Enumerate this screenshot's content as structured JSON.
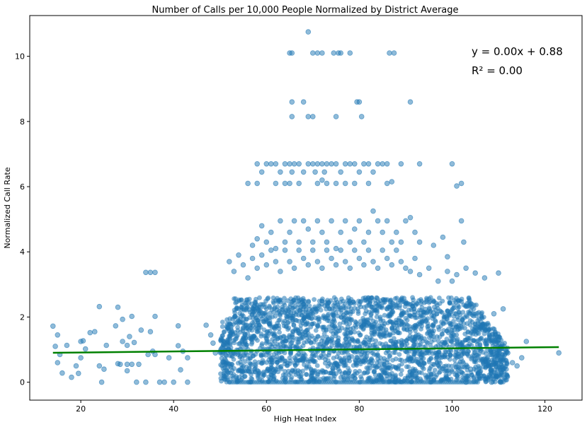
{
  "chart_data": {
    "type": "scatter",
    "title": "Number of Calls per 10,000 People Normalized by District Average",
    "xlabel": "High Heat Index",
    "ylabel": "Normalized Call Rate",
    "xlim": [
      9,
      128
    ],
    "ylim": [
      -0.55,
      11.25
    ],
    "xticks": [
      20,
      40,
      60,
      80,
      100,
      120
    ],
    "yticks": [
      0,
      2,
      4,
      6,
      8,
      10
    ],
    "grid": false,
    "point_color": "#1f77b4",
    "point_opacity": 0.5,
    "trendline": {
      "color": "#008000",
      "slope": 0.0016,
      "intercept": 0.88,
      "x": [
        14,
        123
      ]
    },
    "annotations": [
      "y = 0.00x + 0.88",
      "R² = 0.00"
    ],
    "dense_cluster": {
      "x_range": [
        50,
        112
      ],
      "y_range": [
        0,
        2.6
      ]
    },
    "sample_points": [
      [
        14,
        1.72
      ],
      [
        14.5,
        1.1
      ],
      [
        15,
        1.45
      ],
      [
        15,
        0.6
      ],
      [
        15.5,
        0.85
      ],
      [
        16,
        0.28
      ],
      [
        17,
        1.13
      ],
      [
        18,
        0.15
      ],
      [
        19,
        0.5
      ],
      [
        19.5,
        0.27
      ],
      [
        20,
        0.75
      ],
      [
        20,
        1.25
      ],
      [
        20.5,
        1.27
      ],
      [
        21,
        1.02
      ],
      [
        22,
        1.52
      ],
      [
        23,
        1.55
      ],
      [
        24,
        2.32
      ],
      [
        24,
        0.5
      ],
      [
        24.5,
        0.0
      ],
      [
        25,
        0.4
      ],
      [
        25.5,
        1.13
      ],
      [
        27.5,
        1.73
      ],
      [
        28,
        0.57
      ],
      [
        28,
        2.3
      ],
      [
        28.5,
        0.55
      ],
      [
        29,
        1.25
      ],
      [
        29,
        1.93
      ],
      [
        30,
        1.13
      ],
      [
        30,
        0.55
      ],
      [
        30,
        0.35
      ],
      [
        30.5,
        1.4
      ],
      [
        31,
        2.02
      ],
      [
        31,
        0.55
      ],
      [
        31.5,
        1.22
      ],
      [
        32,
        0.0
      ],
      [
        32.5,
        0.55
      ],
      [
        33,
        1.6
      ],
      [
        34,
        3.37
      ],
      [
        34,
        0.0
      ],
      [
        34.5,
        0.85
      ],
      [
        35,
        3.37
      ],
      [
        35,
        1.55
      ],
      [
        35.5,
        0.95
      ],
      [
        36,
        3.37
      ],
      [
        36,
        2.02
      ],
      [
        36,
        0.85
      ],
      [
        37,
        0.0
      ],
      [
        38,
        0.0
      ],
      [
        39,
        0.75
      ],
      [
        40,
        0.0
      ],
      [
        41,
        1.12
      ],
      [
        41,
        1.73
      ],
      [
        41.5,
        0.38
      ],
      [
        42,
        0.95
      ],
      [
        43,
        0.0
      ],
      [
        43,
        0.75
      ],
      [
        65,
        10.1
      ],
      [
        65.5,
        10.1
      ],
      [
        69,
        10.75
      ],
      [
        70,
        10.1
      ],
      [
        71,
        10.1
      ],
      [
        72,
        10.1
      ],
      [
        74.5,
        10.1
      ],
      [
        75.5,
        10.1
      ],
      [
        76,
        10.1
      ],
      [
        78,
        10.1
      ],
      [
        86.5,
        10.1
      ],
      [
        87.5,
        10.1
      ],
      [
        65.5,
        8.6
      ],
      [
        65.5,
        8.15
      ],
      [
        68,
        8.6
      ],
      [
        69,
        8.15
      ],
      [
        70,
        8.15
      ],
      [
        75,
        8.15
      ],
      [
        79.5,
        8.6
      ],
      [
        80,
        8.6
      ],
      [
        80.5,
        8.15
      ],
      [
        91,
        8.6
      ],
      [
        58,
        6.7
      ],
      [
        59,
        6.45
      ],
      [
        60,
        6.7
      ],
      [
        61,
        6.7
      ],
      [
        62,
        6.7
      ],
      [
        63,
        6.45
      ],
      [
        64,
        6.7
      ],
      [
        65,
        6.7
      ],
      [
        65.5,
        6.45
      ],
      [
        66,
        6.7
      ],
      [
        67,
        6.7
      ],
      [
        68,
        6.45
      ],
      [
        69,
        6.7
      ],
      [
        70,
        6.7
      ],
      [
        70.5,
        6.45
      ],
      [
        71,
        6.7
      ],
      [
        72,
        6.7
      ],
      [
        72.5,
        6.45
      ],
      [
        73,
        6.7
      ],
      [
        74,
        6.7
      ],
      [
        75,
        6.7
      ],
      [
        76,
        6.45
      ],
      [
        77,
        6.7
      ],
      [
        78,
        6.7
      ],
      [
        79,
        6.7
      ],
      [
        80,
        6.45
      ],
      [
        81,
        6.7
      ],
      [
        82,
        6.7
      ],
      [
        83,
        6.45
      ],
      [
        84,
        6.7
      ],
      [
        85,
        6.7
      ],
      [
        86,
        6.7
      ],
      [
        89,
        6.7
      ],
      [
        93,
        6.7
      ],
      [
        100,
        6.7
      ],
      [
        56,
        6.1
      ],
      [
        58,
        6.1
      ],
      [
        62,
        6.1
      ],
      [
        64,
        6.1
      ],
      [
        65,
        6.1
      ],
      [
        67,
        6.1
      ],
      [
        71,
        6.1
      ],
      [
        72,
        6.2
      ],
      [
        73,
        6.1
      ],
      [
        75,
        6.1
      ],
      [
        77,
        6.1
      ],
      [
        79,
        6.1
      ],
      [
        82,
        6.1
      ],
      [
        86,
        6.1
      ],
      [
        87,
        6.15
      ],
      [
        101,
        6.02
      ],
      [
        102,
        6.1
      ],
      [
        57,
        4.2
      ],
      [
        58,
        4.4
      ],
      [
        59,
        4.8
      ],
      [
        60,
        4.3
      ],
      [
        61,
        4.6
      ],
      [
        62,
        4.1
      ],
      [
        63,
        4.95
      ],
      [
        64,
        4.3
      ],
      [
        65,
        4.6
      ],
      [
        66,
        4.95
      ],
      [
        67,
        4.3
      ],
      [
        68,
        4.95
      ],
      [
        69,
        4.7
      ],
      [
        70,
        4.3
      ],
      [
        71,
        4.95
      ],
      [
        72,
        4.6
      ],
      [
        73,
        4.3
      ],
      [
        74,
        4.95
      ],
      [
        75,
        4.1
      ],
      [
        76,
        4.6
      ],
      [
        77,
        4.95
      ],
      [
        78,
        4.3
      ],
      [
        79,
        4.7
      ],
      [
        80,
        4.95
      ],
      [
        81,
        4.3
      ],
      [
        82,
        4.6
      ],
      [
        83,
        5.25
      ],
      [
        84,
        4.95
      ],
      [
        85,
        4.6
      ],
      [
        86,
        4.95
      ],
      [
        87,
        4.3
      ],
      [
        88,
        4.6
      ],
      [
        89,
        4.3
      ],
      [
        90,
        4.95
      ],
      [
        91,
        5.05
      ],
      [
        92,
        4.6
      ],
      [
        93,
        4.3
      ],
      [
        96,
        4.2
      ],
      [
        98,
        4.45
      ],
      [
        99,
        3.85
      ],
      [
        102,
        4.95
      ],
      [
        102.5,
        4.3
      ],
      [
        52,
        3.7
      ],
      [
        53,
        3.4
      ],
      [
        54,
        3.9
      ],
      [
        55,
        3.6
      ],
      [
        56,
        3.2
      ],
      [
        57,
        3.8
      ],
      [
        58,
        3.5
      ],
      [
        59,
        3.9
      ],
      [
        60,
        3.6
      ],
      [
        61,
        4.05
      ],
      [
        62,
        3.7
      ],
      [
        63,
        3.4
      ],
      [
        64,
        4.05
      ],
      [
        65,
        3.7
      ],
      [
        66,
        3.5
      ],
      [
        67,
        4.05
      ],
      [
        68,
        3.8
      ],
      [
        69,
        3.6
      ],
      [
        70,
        4.05
      ],
      [
        71,
        3.7
      ],
      [
        72,
        3.5
      ],
      [
        73,
        4.05
      ],
      [
        74,
        3.8
      ],
      [
        75,
        3.6
      ],
      [
        76,
        4.05
      ],
      [
        77,
        3.7
      ],
      [
        78,
        3.5
      ],
      [
        79,
        4.05
      ],
      [
        80,
        3.8
      ],
      [
        81,
        3.6
      ],
      [
        82,
        4.05
      ],
      [
        83,
        3.7
      ],
      [
        84,
        3.5
      ],
      [
        85,
        4.05
      ],
      [
        86,
        3.8
      ],
      [
        87,
        3.6
      ],
      [
        88,
        4.05
      ],
      [
        89,
        3.7
      ],
      [
        90,
        3.5
      ],
      [
        91,
        3.4
      ],
      [
        92,
        3.8
      ],
      [
        93,
        3.3
      ],
      [
        95,
        3.5
      ],
      [
        97,
        3.1
      ],
      [
        99,
        3.4
      ],
      [
        100,
        3.1
      ],
      [
        101,
        3.3
      ],
      [
        103,
        3.5
      ],
      [
        105,
        3.35
      ],
      [
        107,
        3.2
      ],
      [
        110,
        3.35
      ],
      [
        103,
        0.0
      ],
      [
        104,
        0.4
      ],
      [
        105,
        0.7
      ],
      [
        106,
        0.3
      ],
      [
        107,
        1.7
      ],
      [
        108,
        0.6
      ],
      [
        108.5,
        0.0
      ],
      [
        109,
        2.1
      ],
      [
        110,
        1.3
      ],
      [
        110.5,
        0.0
      ],
      [
        111,
        2.25
      ],
      [
        111.5,
        1.0
      ],
      [
        112,
        0.9
      ],
      [
        113,
        0.6
      ],
      [
        114,
        0.5
      ],
      [
        115,
        0.75
      ],
      [
        116,
        1.25
      ],
      [
        123,
        0.9
      ],
      [
        47,
        1.75
      ],
      [
        48,
        1.45
      ],
      [
        48.5,
        1.2
      ],
      [
        49,
        0.9
      ]
    ]
  }
}
